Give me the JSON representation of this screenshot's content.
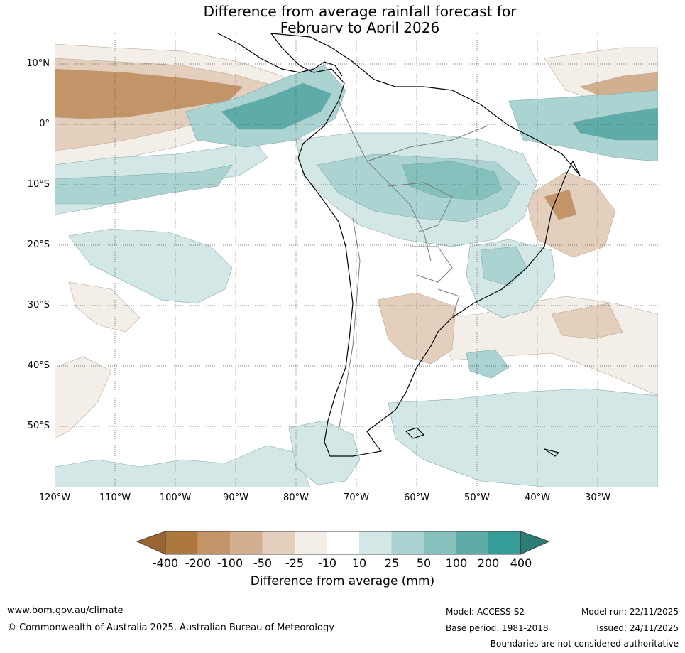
{
  "title": {
    "line1": "Difference from average rainfall forecast for",
    "line2": "February to April 2026"
  },
  "latitude_labels": [
    "10°N",
    "0°",
    "10°S",
    "20°S",
    "30°S",
    "40°S",
    "50°S"
  ],
  "longitude_labels": [
    "120°W",
    "110°W",
    "100°W",
    "90°W",
    "80°W",
    "70°W",
    "60°W",
    "50°W",
    "40°W",
    "30°W"
  ],
  "map": {
    "extent": {
      "lon_min": -120,
      "lon_max": -20,
      "lat_min": -60,
      "lat_max": 15
    },
    "grid_step_deg": 10,
    "region": "South America and surrounding oceans"
  },
  "colorbar": {
    "title": "Difference from average (mm)",
    "tick_labels": [
      "-400",
      "-200",
      "-100",
      "-50",
      "-25",
      "-10",
      "10",
      "25",
      "50",
      "100",
      "200",
      "400"
    ],
    "colors": [
      "#9a6530",
      "#ad783e",
      "#c29467",
      "#d2b08f",
      "#e4cfbd",
      "#f3eee8",
      "#ffffff",
      "#d3e8e6",
      "#aad3d1",
      "#86c0bd",
      "#5eaca9",
      "#369c97",
      "#2b7b77"
    ]
  },
  "footer": {
    "website": "www.bom.gov.au/climate",
    "copyright": "© Commonwealth of Australia 2025, Australian Bureau of Meteorology",
    "model": "Model: ACCESS-S2",
    "base_period": "Base period: 1981-2018",
    "model_run": "Model run: 22/11/2025",
    "issued": "Issued: 24/11/2025",
    "disclaimer": "Boundaries are not considered authoritative"
  }
}
